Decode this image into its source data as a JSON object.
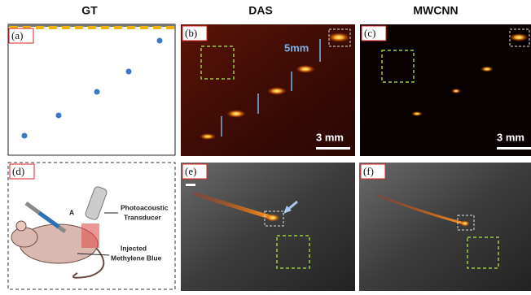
{
  "headers": [
    "GT",
    "DAS",
    "MWCNN"
  ],
  "panel_labels": [
    "(a)",
    "(b)",
    "(c)",
    "(d)",
    "(e)",
    "(f)"
  ],
  "das": {
    "arrow_label": "5mm",
    "scale_bar": "3 mm"
  },
  "mwcnn": {
    "scale_bar": "3 mm"
  },
  "diagram": {
    "transducer": [
      "Photoacoustic",
      "Transducer"
    ],
    "marker": "A",
    "injection": [
      "Injected",
      "Methylene Blue"
    ]
  }
}
